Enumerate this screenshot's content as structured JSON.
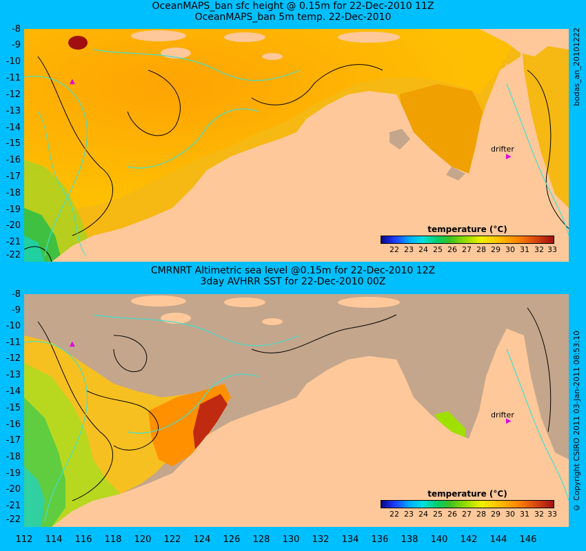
{
  "top_panel": {
    "title_line1": "OceanMAPS_ban sfc height @ 0.15m for 22-Dec-2010 11Z",
    "title_line2": "OceanMAPS_ban 5m temp. 22-Dec-2010",
    "side_text": "bodas_an_20101222",
    "drifter_label": "drifter"
  },
  "bottom_panel": {
    "title_line1": "CMRNRT Altimetric sea level  @0.15m  for 22-Dec-2010 12Z",
    "title_line2": "3day AVHRR SST for 22-Dec-2010 00Z",
    "side_text": "© Copyright CSIRO 2011   03-Jan-2011 08:53:10",
    "drifter_label": "drifter"
  },
  "legend": {
    "title": "temperature (°C)",
    "ticks": [
      "22",
      "23",
      "24",
      "25",
      "26",
      "27",
      "28",
      "29",
      "30",
      "31",
      "32",
      "33"
    ]
  },
  "y_axis_labels": [
    "-8",
    "-9",
    "-10",
    "-11",
    "-12",
    "-13",
    "-14",
    "-15",
    "-16",
    "-17",
    "-18",
    "-19",
    "-20",
    "-21",
    "-22"
  ],
  "x_axis_labels": [
    "112",
    "114",
    "116",
    "118",
    "120",
    "122",
    "124",
    "126",
    "128",
    "130",
    "132",
    "134",
    "136",
    "138",
    "140",
    "142",
    "144",
    "146"
  ],
  "colors": {
    "background": "#00bfff",
    "land": "#fec89a",
    "no_data": "#c4a68c",
    "drifter": "#e000e0"
  }
}
